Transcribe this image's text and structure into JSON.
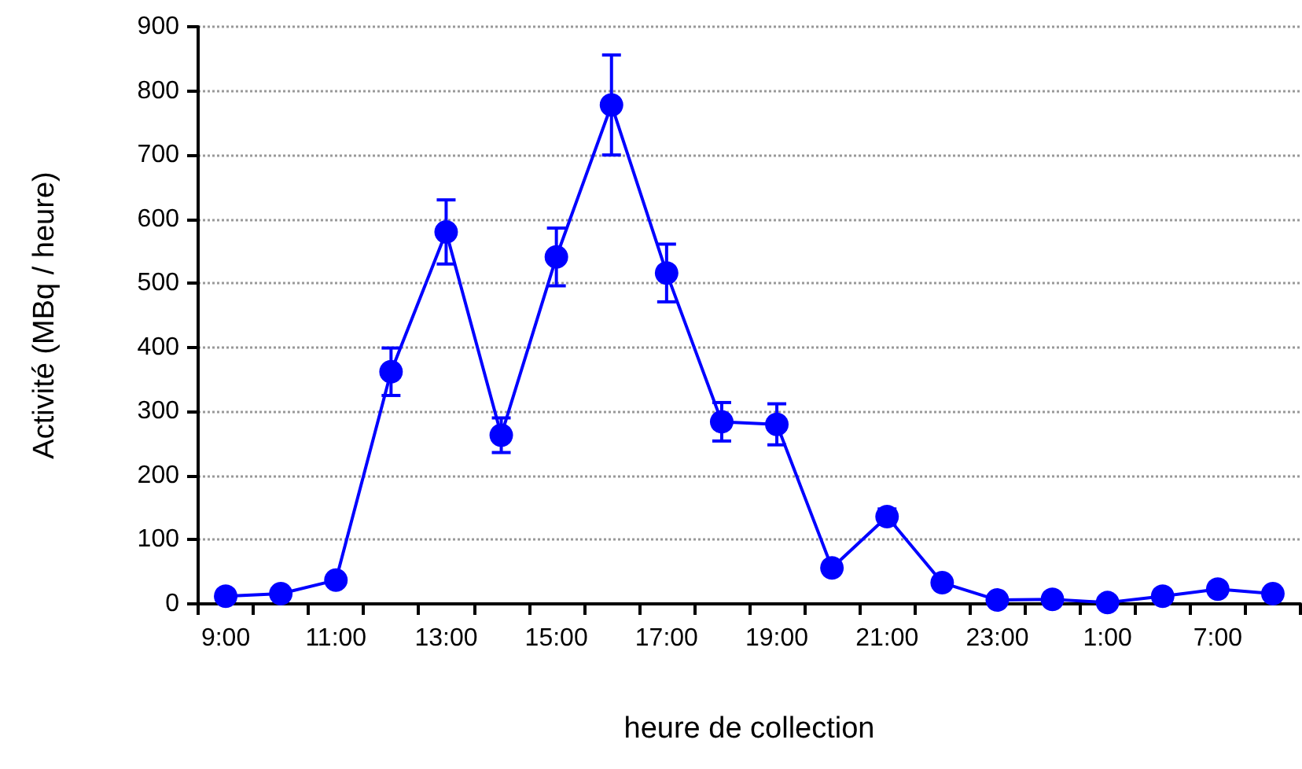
{
  "chart_data": {
    "type": "line",
    "xlabel": "heure de collection",
    "ylabel": "Activité (MBq / heure)",
    "categories": [
      "9:00",
      null,
      "11:00",
      null,
      "13:00",
      null,
      "15:00",
      null,
      "17:00",
      null,
      "19:00",
      null,
      "21:00",
      null,
      "23:00",
      null,
      "1:00",
      null,
      "7:00",
      null
    ],
    "series": [
      {
        "color": "#0000ff",
        "values": [
          12,
          16,
          37,
          362,
          580,
          263,
          541,
          778,
          516,
          284,
          280,
          56,
          136,
          33,
          6,
          7,
          2,
          12,
          23,
          16
        ],
        "errors": [
          null,
          5,
          5,
          37,
          50,
          27,
          45,
          78,
          45,
          30,
          32,
          null,
          12,
          4,
          null,
          null,
          null,
          null,
          5,
          null
        ]
      }
    ],
    "ylim": [
      0,
      900
    ],
    "yticks": [
      0,
      100,
      200,
      300,
      400,
      500,
      600,
      700,
      800,
      900
    ],
    "grid": "y",
    "marker": "circle",
    "line_style": "solid"
  }
}
